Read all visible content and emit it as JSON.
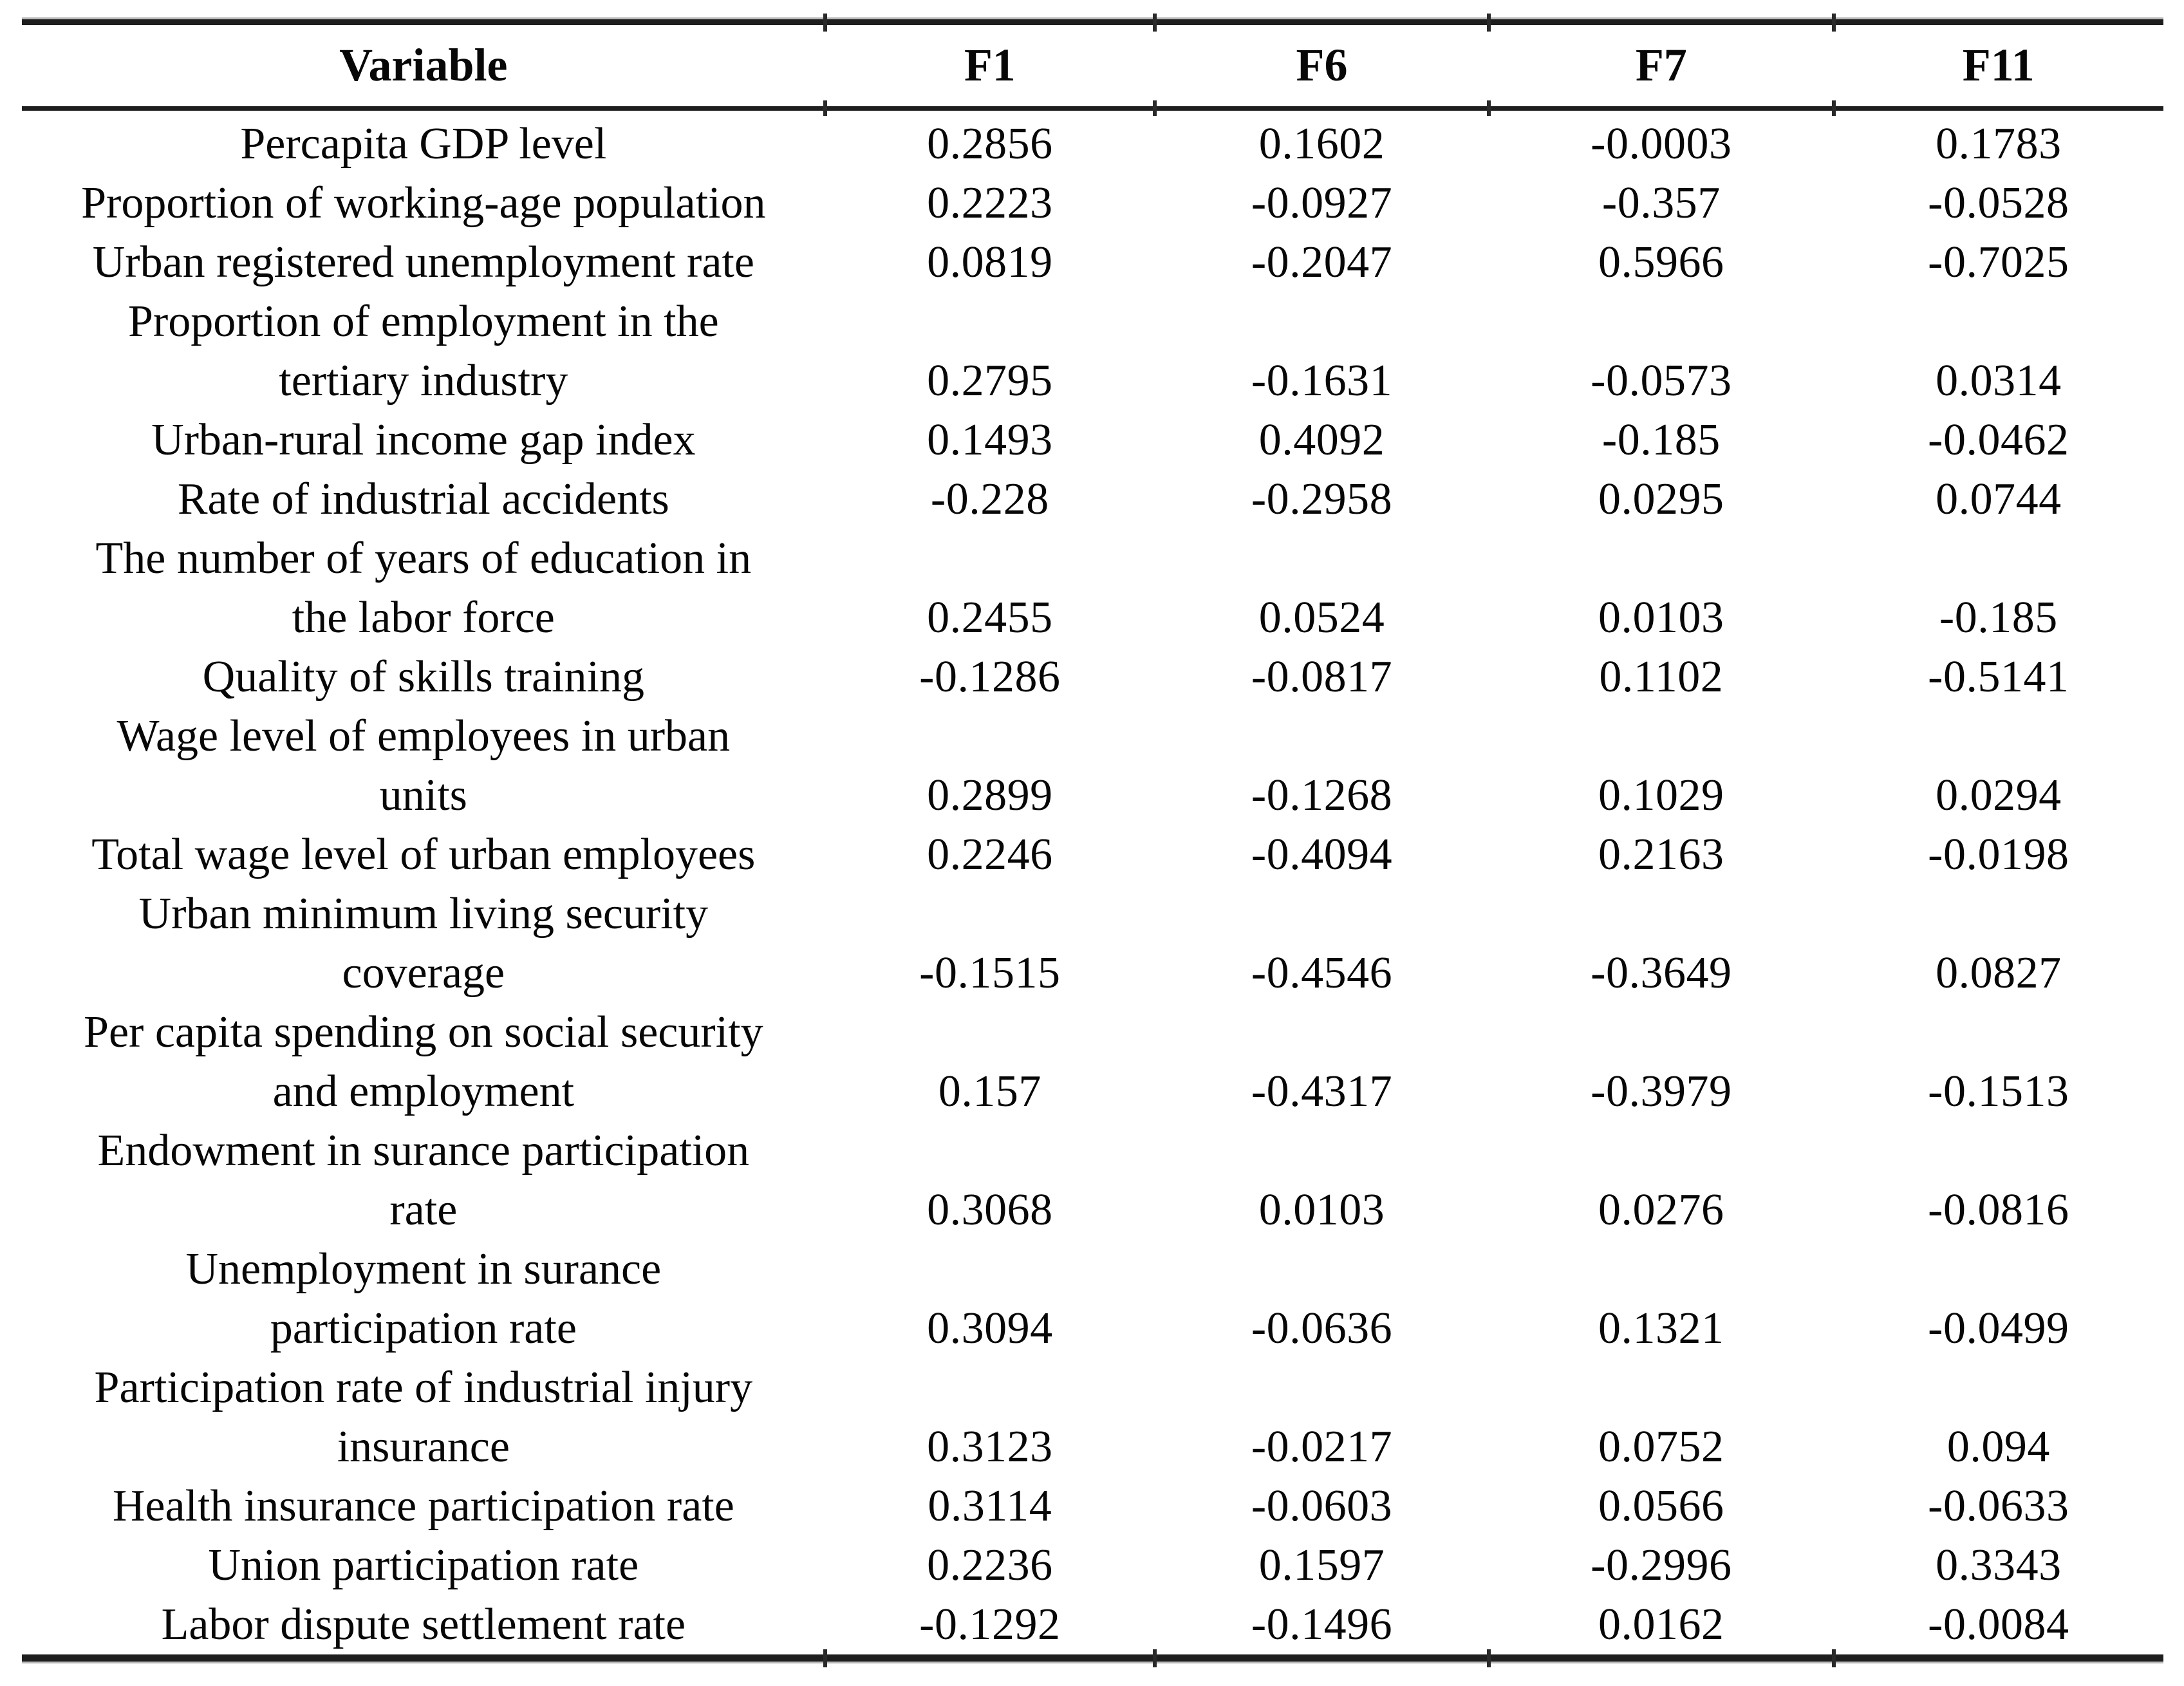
{
  "table": {
    "columns": [
      "Variable",
      "F1",
      "F6",
      "F7",
      "F11"
    ],
    "rows": [
      {
        "variable": "Percapita GDP level",
        "values": [
          "0.2856",
          "0.1602",
          "-0.0003",
          "0.1783"
        ]
      },
      {
        "variable": "Proportion of working-age population",
        "values": [
          "0.2223",
          "-0.0927",
          "-0.357",
          "-0.0528"
        ]
      },
      {
        "variable": "Urban registered unemployment rate",
        "values": [
          "0.0819",
          "-0.2047",
          "0.5966",
          "-0.7025"
        ]
      },
      {
        "variable": "Proportion of employment in the\ntertiary industry",
        "values": [
          "0.2795",
          "-0.1631",
          "-0.0573",
          "0.0314"
        ]
      },
      {
        "variable": "Urban-rural income gap index",
        "values": [
          "0.1493",
          "0.4092",
          "-0.185",
          "-0.0462"
        ]
      },
      {
        "variable": "Rate of industrial accidents",
        "values": [
          "-0.228",
          "-0.2958",
          "0.0295",
          "0.0744"
        ]
      },
      {
        "variable": "The number of years of education in\nthe labor force",
        "values": [
          "0.2455",
          "0.0524",
          "0.0103",
          "-0.185"
        ]
      },
      {
        "variable": "Quality of skills training",
        "values": [
          "-0.1286",
          "-0.0817",
          "0.1102",
          "-0.5141"
        ]
      },
      {
        "variable": "Wage level of employees in urban\nunits",
        "values": [
          "0.2899",
          "-0.1268",
          "0.1029",
          "0.0294"
        ]
      },
      {
        "variable": "Total wage level of urban employees",
        "values": [
          "0.2246",
          "-0.4094",
          "0.2163",
          "-0.0198"
        ]
      },
      {
        "variable": "Urban minimum living security\ncoverage",
        "values": [
          "-0.1515",
          "-0.4546",
          "-0.3649",
          "0.0827"
        ]
      },
      {
        "variable": "Per capita spending on social security\nand employment",
        "values": [
          "0.157",
          "-0.4317",
          "-0.3979",
          "-0.1513"
        ]
      },
      {
        "variable": "Endowment in surance participation\nrate",
        "values": [
          "0.3068",
          "0.0103",
          "0.0276",
          "-0.0816"
        ]
      },
      {
        "variable": "Unemployment in surance\nparticipation rate",
        "values": [
          "0.3094",
          "-0.0636",
          "0.1321",
          "-0.0499"
        ]
      },
      {
        "variable": "Participation rate of industrial injury\ninsurance",
        "values": [
          "0.3123",
          "-0.0217",
          "0.0752",
          "0.094"
        ]
      },
      {
        "variable": "Health insurance participation rate",
        "values": [
          "0.3114",
          "-0.0603",
          "0.0566",
          "-0.0633"
        ]
      },
      {
        "variable": "Union participation rate",
        "values": [
          "0.2236",
          "0.1597",
          "-0.2996",
          "0.3343"
        ]
      },
      {
        "variable": "Labor dispute settlement rate",
        "values": [
          "-0.1292",
          "-0.1496",
          "0.0162",
          "-0.0084"
        ]
      }
    ]
  }
}
